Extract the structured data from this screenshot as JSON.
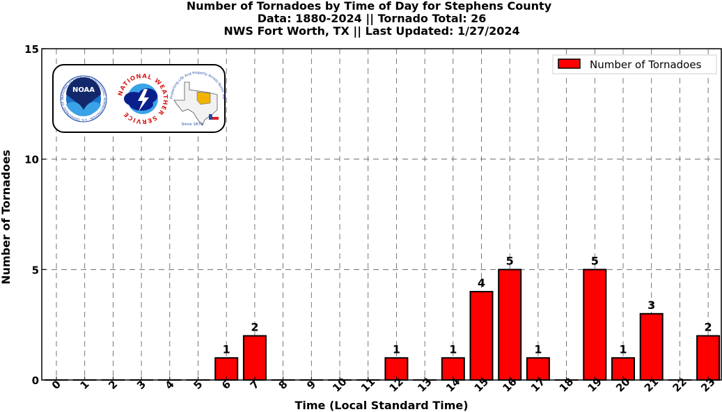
{
  "title_lines": [
    "Number of Tornadoes by Time of Day for Stephens County",
    "Data: 1880-2024 || Tornado Total: 26",
    "NWS Fort Worth, TX || Last Updated: 1/27/2024"
  ],
  "logos": {
    "noaa": {
      "text": "NOAA",
      "ring_text": "NATIONAL OCEANIC AND ATMOSPHERIC ADMINISTRATION · U.S. DEPARTMENT OF COMMERCE"
    },
    "nws": {
      "ring_text": "NATIONAL WEATHER SERVICE"
    },
    "fwd": {
      "ring_text": "Protecting Life And Property Across North Texas",
      "since": "Since 1870"
    }
  },
  "colors": {
    "bar_fill": "#ff0000",
    "bar_stroke": "#000000",
    "grid": "#555555"
  },
  "chart_data": {
    "type": "bar",
    "categories": [
      "0",
      "1",
      "2",
      "3",
      "4",
      "5",
      "6",
      "7",
      "8",
      "9",
      "10",
      "11",
      "12",
      "13",
      "14",
      "15",
      "16",
      "17",
      "18",
      "19",
      "20",
      "21",
      "22",
      "23"
    ],
    "series": [
      {
        "name": "Number of Tornadoes",
        "values": [
          0,
          0,
          0,
          0,
          0,
          0,
          1,
          2,
          0,
          0,
          0,
          0,
          1,
          0,
          1,
          4,
          5,
          1,
          0,
          5,
          1,
          3,
          0,
          2
        ]
      }
    ],
    "xlabel": "Time (Local Standard Time)",
    "ylabel": "Number of Tornadoes",
    "ylim": [
      0,
      15
    ],
    "yticks": [
      0,
      5,
      10,
      15
    ],
    "grid": true,
    "legend_position": "top-right"
  }
}
